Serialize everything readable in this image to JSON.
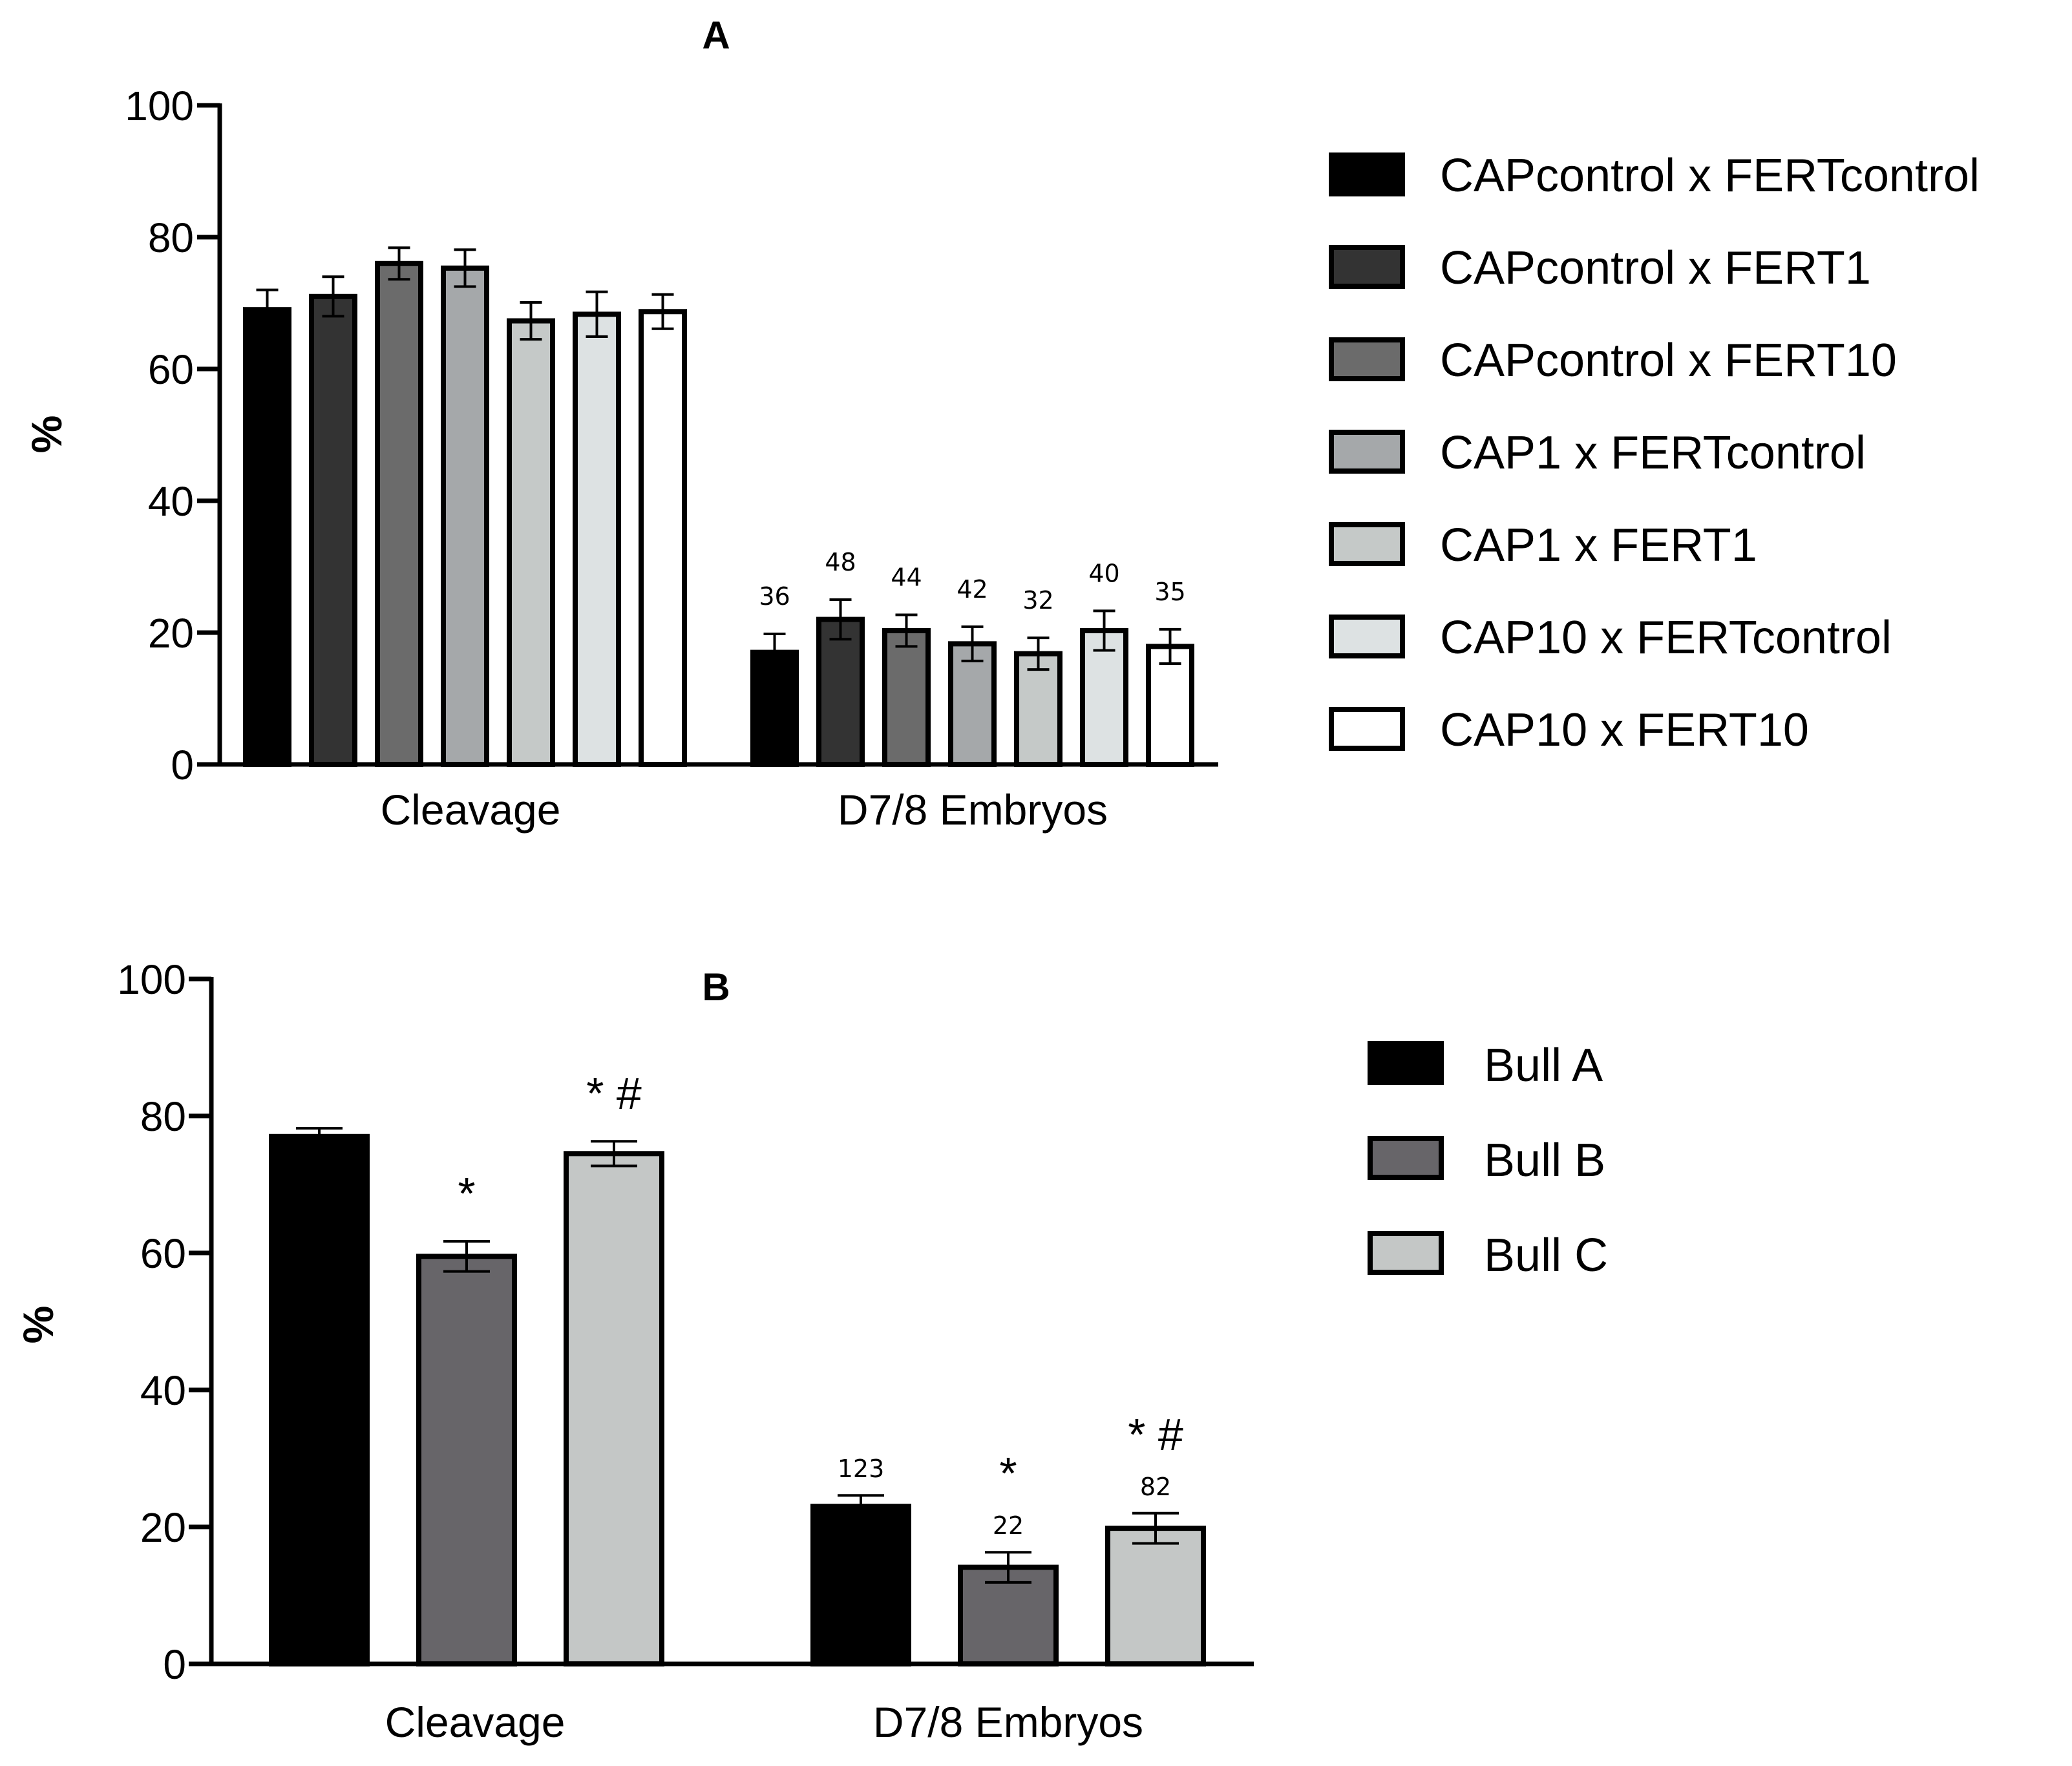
{
  "chart_data": [
    {
      "type": "bar",
      "title": "A",
      "ylabel": "%",
      "xlabel": "",
      "ylim": [
        0,
        100
      ],
      "yticks": [
        0,
        20,
        40,
        60,
        80,
        100
      ],
      "categories": [
        "Cleavage",
        "D7/8 Embryos"
      ],
      "legend_position": "right",
      "series": [
        {
          "name": "CAPcontrol x FERTcontrol",
          "color": "#000000",
          "values": [
            69,
            17
          ],
          "errors": [
            3,
            2.8
          ],
          "labels": [
            "",
            "36"
          ],
          "sig": [
            "",
            ""
          ]
        },
        {
          "name": "CAPcontrol x FERT1",
          "color": "#333333",
          "values": [
            71,
            22
          ],
          "errors": [
            3,
            3
          ],
          "labels": [
            "",
            "48"
          ],
          "sig": [
            "",
            ""
          ]
        },
        {
          "name": "CAPcontrol x FERT10",
          "color": "#6b6b6b",
          "values": [
            76,
            20.3
          ],
          "errors": [
            2.4,
            2.4
          ],
          "labels": [
            "",
            "44"
          ],
          "sig": [
            "",
            ""
          ]
        },
        {
          "name": "CAP1 x FERTcontrol",
          "color": "#a5a8aa",
          "values": [
            75.3,
            18.3
          ],
          "errors": [
            2.8,
            2.6
          ],
          "labels": [
            "",
            "42"
          ],
          "sig": [
            "",
            ""
          ]
        },
        {
          "name": "CAP1 x FERT1",
          "color": "#c5c9c8",
          "values": [
            67.3,
            16.8
          ],
          "errors": [
            2.8,
            2.4
          ],
          "labels": [
            "",
            "32"
          ],
          "sig": [
            "",
            ""
          ]
        },
        {
          "name": "CAP10 x FERTcontrol",
          "color": "#dde2e3",
          "values": [
            68.3,
            20.3
          ],
          "errors": [
            3.4,
            3
          ],
          "labels": [
            "",
            "40"
          ],
          "sig": [
            "",
            ""
          ]
        },
        {
          "name": "CAP10 x FERT10",
          "color": "#ffffff",
          "values": [
            68.7,
            17.9
          ],
          "errors": [
            2.6,
            2.6
          ],
          "labels": [
            "",
            "35"
          ],
          "sig": [
            "",
            ""
          ]
        }
      ]
    },
    {
      "type": "bar",
      "title": "B",
      "ylabel": "%",
      "xlabel": "",
      "ylim": [
        0,
        100
      ],
      "yticks": [
        0,
        20,
        40,
        60,
        80,
        100
      ],
      "categories": [
        "Cleavage",
        "D7/8 Embryos"
      ],
      "legend_position": "right",
      "series": [
        {
          "name": "Bull A",
          "color": "#000000",
          "values": [
            77,
            23
          ],
          "errors": [
            1.2,
            1.6
          ],
          "labels": [
            "",
            "123"
          ],
          "sig": [
            "",
            ""
          ]
        },
        {
          "name": "Bull B",
          "color": "#676569",
          "values": [
            59.5,
            14.1
          ],
          "errors": [
            2.2,
            2.2
          ],
          "labels": [
            "",
            "22"
          ],
          "sig": [
            "*",
            "*"
          ]
        },
        {
          "name": "Bull C",
          "color": "#c4c7c6",
          "values": [
            74.5,
            19.8
          ],
          "errors": [
            1.8,
            2.2
          ],
          "labels": [
            "",
            "82"
          ],
          "sig": [
            "* #",
            "* #"
          ]
        }
      ]
    }
  ]
}
